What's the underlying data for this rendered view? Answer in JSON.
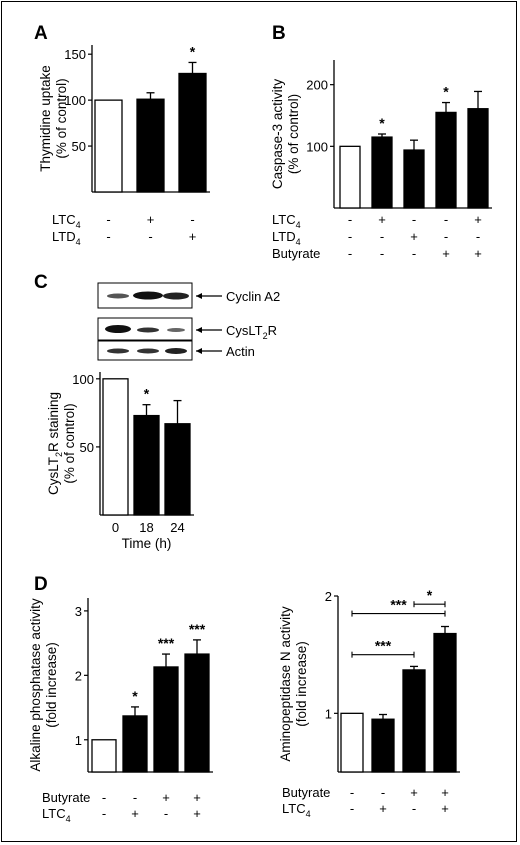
{
  "panels": {
    "A": "A",
    "B": "B",
    "C": "C",
    "D": "D"
  },
  "colors": {
    "control": "#ffffff",
    "treated": "#000000",
    "stroke": "#000000"
  },
  "blot": {
    "labels": [
      "Cyclin A2",
      "CysLT",
      "Actin"
    ],
    "cyslt2r": {
      "prefix": "CysLT",
      "sub": "2",
      "suffix": "R"
    }
  },
  "chart_data": [
    {
      "id": "A",
      "type": "bar",
      "ylabel": [
        "Thymidine uptake",
        "(% of control)"
      ],
      "ylim": [
        0,
        160
      ],
      "yticks": [
        50,
        100,
        150
      ],
      "values": [
        100,
        101,
        129
      ],
      "errors": [
        0,
        7,
        12
      ],
      "fills": [
        "white",
        "black",
        "black"
      ],
      "sig": [
        "",
        "",
        "*"
      ],
      "conditions": [
        {
          "label": "LTC",
          "sub": "4",
          "marks": [
            "-",
            "+",
            "-"
          ]
        },
        {
          "label": "LTD",
          "sub": "4",
          "marks": [
            "-",
            "-",
            "+"
          ]
        }
      ]
    },
    {
      "id": "B",
      "type": "bar",
      "ylabel": [
        "Caspase-3 activity",
        "(% of control)"
      ],
      "ylim": [
        0,
        240
      ],
      "yticks": [
        100,
        200
      ],
      "values": [
        100,
        115,
        94,
        155,
        161
      ],
      "errors": [
        0,
        5,
        16,
        16,
        28
      ],
      "fills": [
        "white",
        "black",
        "black",
        "black",
        "black"
      ],
      "sig": [
        "",
        "*",
        "",
        "*",
        ""
      ],
      "conditions": [
        {
          "label": "LTC",
          "sub": "4",
          "marks": [
            "-",
            "+",
            "-",
            "-",
            "+"
          ]
        },
        {
          "label": "LTD",
          "sub": "4",
          "marks": [
            "-",
            "-",
            "+",
            "-",
            "-"
          ]
        },
        {
          "label": "Butyrate",
          "sub": "",
          "marks": [
            "-",
            "-",
            "-",
            "+",
            "+"
          ]
        }
      ]
    },
    {
      "id": "C",
      "type": "bar",
      "ylabel": [
        "CysLT",
        "2",
        "R staining",
        "(% of control)"
      ],
      "ylim": [
        0,
        105
      ],
      "yticks": [
        50,
        100
      ],
      "categories": [
        "0",
        "18",
        "24"
      ],
      "xlabel": "Time (h)",
      "values": [
        100,
        73,
        67
      ],
      "errors": [
        0,
        8,
        17
      ],
      "fills": [
        "white",
        "black",
        "black"
      ],
      "sig": [
        "",
        "*",
        ""
      ]
    },
    {
      "id": "D1",
      "type": "bar",
      "ylabel": [
        "Alkaline phosphatase activity",
        "(fold increase)"
      ],
      "ylim": [
        0.5,
        3.2
      ],
      "yticks": [
        1,
        2,
        3
      ],
      "values": [
        1.0,
        1.37,
        2.13,
        2.33
      ],
      "errors": [
        0,
        0.14,
        0.2,
        0.22
      ],
      "fills": [
        "white",
        "black",
        "black",
        "black"
      ],
      "sig": [
        "",
        "*",
        "***",
        "***"
      ],
      "conditions": [
        {
          "label": "Butyrate",
          "sub": "",
          "marks": [
            "-",
            "-",
            "+",
            "+"
          ]
        },
        {
          "label": "LTC",
          "sub": "4",
          "marks": [
            "-",
            "+",
            "-",
            "+"
          ]
        }
      ]
    },
    {
      "id": "D2",
      "type": "bar",
      "ylabel": [
        "Aminopeptidase N activity",
        "(fold increase)"
      ],
      "ylim": [
        0.5,
        2.0
      ],
      "yticks": [
        1,
        2
      ],
      "values": [
        1.0,
        0.95,
        1.37,
        1.68
      ],
      "errors": [
        0,
        0.04,
        0.03,
        0.06
      ],
      "fills": [
        "white",
        "black",
        "black",
        "black"
      ],
      "sig": [
        "",
        "",
        "",
        ""
      ],
      "brackets": [
        {
          "from": 0,
          "to": 2,
          "label": "***",
          "level": 1.5
        },
        {
          "from": 0,
          "to": 3,
          "label": "***",
          "level": 1.85
        },
        {
          "from": 2,
          "to": 3,
          "label": "*",
          "level": 1.93
        }
      ],
      "conditions": [
        {
          "label": "Butyrate",
          "sub": "",
          "marks": [
            "-",
            "-",
            "+",
            "+"
          ]
        },
        {
          "label": "LTC",
          "sub": "4",
          "marks": [
            "-",
            "+",
            "-",
            "+"
          ]
        }
      ]
    }
  ]
}
